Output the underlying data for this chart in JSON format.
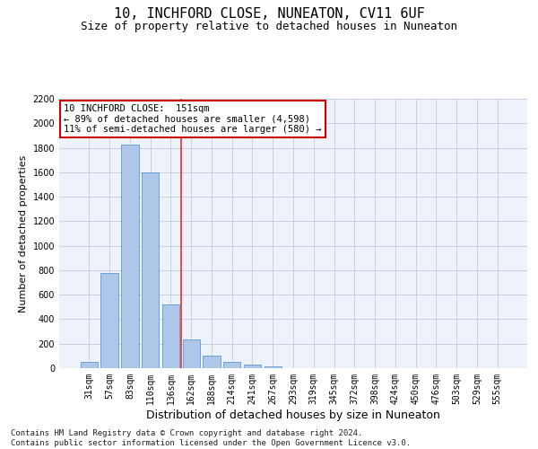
{
  "title": "10, INCHFORD CLOSE, NUNEATON, CV11 6UF",
  "subtitle": "Size of property relative to detached houses in Nuneaton",
  "xlabel": "Distribution of detached houses by size in Nuneaton",
  "ylabel": "Number of detached properties",
  "categories": [
    "31sqm",
    "57sqm",
    "83sqm",
    "110sqm",
    "136sqm",
    "162sqm",
    "188sqm",
    "214sqm",
    "241sqm",
    "267sqm",
    "293sqm",
    "319sqm",
    "345sqm",
    "372sqm",
    "398sqm",
    "424sqm",
    "450sqm",
    "476sqm",
    "503sqm",
    "529sqm",
    "555sqm"
  ],
  "values": [
    50,
    775,
    1825,
    1600,
    520,
    235,
    105,
    50,
    28,
    12,
    0,
    0,
    0,
    0,
    0,
    0,
    0,
    0,
    0,
    0,
    0
  ],
  "bar_color": "#aec6e8",
  "bar_edge_color": "#5b9bd5",
  "vline_x": 4.5,
  "vline_color": "#e03030",
  "annotation_line1": "10 INCHFORD CLOSE:  151sqm",
  "annotation_line2": "← 89% of detached houses are smaller (4,598)",
  "annotation_line3": "11% of semi-detached houses are larger (580) →",
  "annotation_box_color": "#ffffff",
  "annotation_box_edge": "#cc0000",
  "ylim": [
    0,
    2200
  ],
  "yticks": [
    0,
    200,
    400,
    600,
    800,
    1000,
    1200,
    1400,
    1600,
    1800,
    2000,
    2200
  ],
  "grid_color": "#c8d0e0",
  "bg_color": "#eef2fa",
  "footnote": "Contains HM Land Registry data © Crown copyright and database right 2024.\nContains public sector information licensed under the Open Government Licence v3.0.",
  "title_fontsize": 11,
  "subtitle_fontsize": 9,
  "xlabel_fontsize": 9,
  "ylabel_fontsize": 8,
  "tick_fontsize": 7,
  "footnote_fontsize": 6.5,
  "annot_fontsize": 7.5
}
